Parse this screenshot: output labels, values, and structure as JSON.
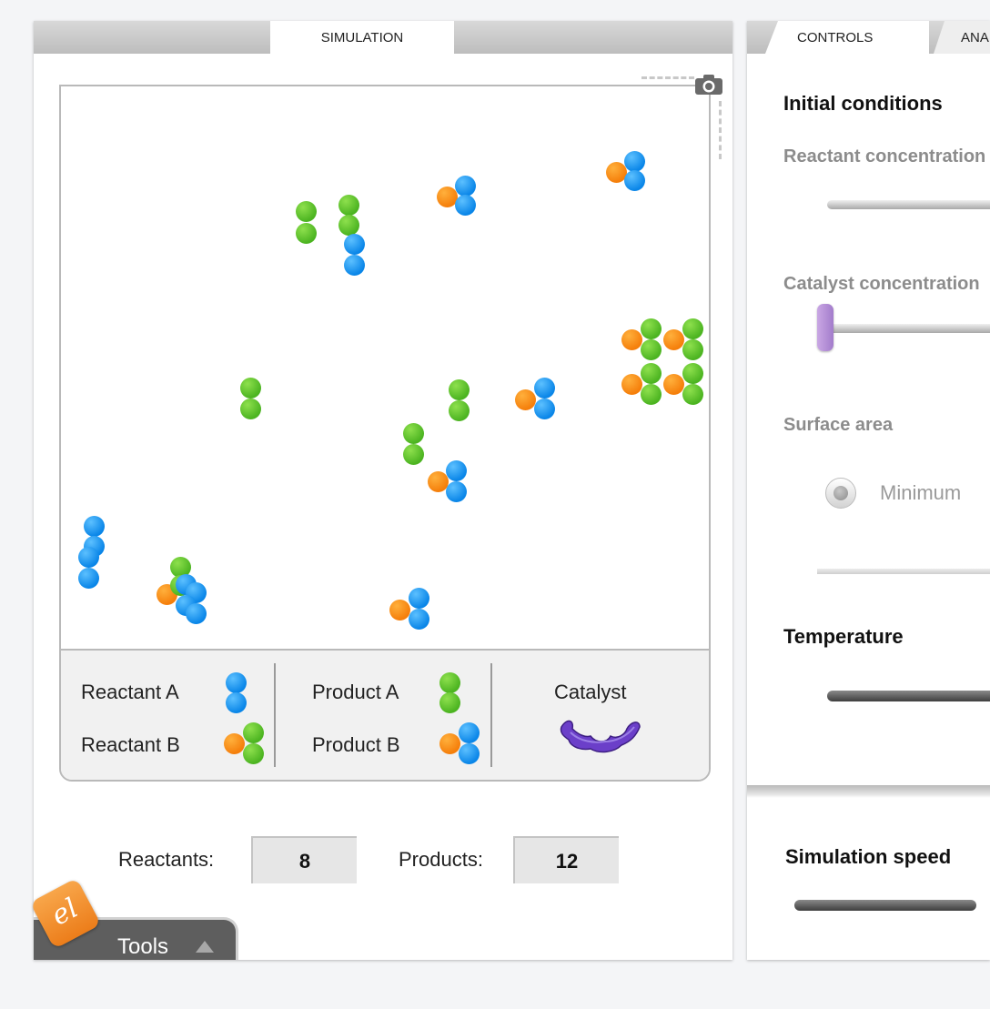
{
  "simulation_tab": {
    "label": "SIMULATION"
  },
  "legend": {
    "reactant_a": "Reactant  A",
    "reactant_b": "Reactant  B",
    "product_a": "Product  A",
    "product_b": "Product  B",
    "catalyst": "Catalyst"
  },
  "counters": {
    "reactants_label": "Reactants:",
    "reactants_value": "8",
    "products_label": "Products:",
    "products_value": "12"
  },
  "tools": {
    "label": "Tools"
  },
  "logo": {
    "text": "el"
  },
  "right_tabs": {
    "controls": "CONTROLS",
    "analysis": "ANALYSIS"
  },
  "controls": {
    "initial_conditions": "Initial conditions",
    "reactant_concentration": "Reactant concentration",
    "catalyst_concentration": "Catalyst concentration",
    "surface_area": "Surface area",
    "surface_area_option": "Minimum",
    "temperature": "Temperature",
    "simulation_speed": "Simulation speed"
  },
  "colors": {
    "reactant_a": "#0a86e8",
    "product_a": "#4cb421",
    "orange_atom": "#f57f0b",
    "catalyst": "#6b3fc9",
    "catalyst_slider_thumb": "#b58fd8"
  },
  "icons": {
    "camera": "camera-icon",
    "tools_toggle": "triangle-up-icon",
    "logo": "explore-learning-logo"
  }
}
